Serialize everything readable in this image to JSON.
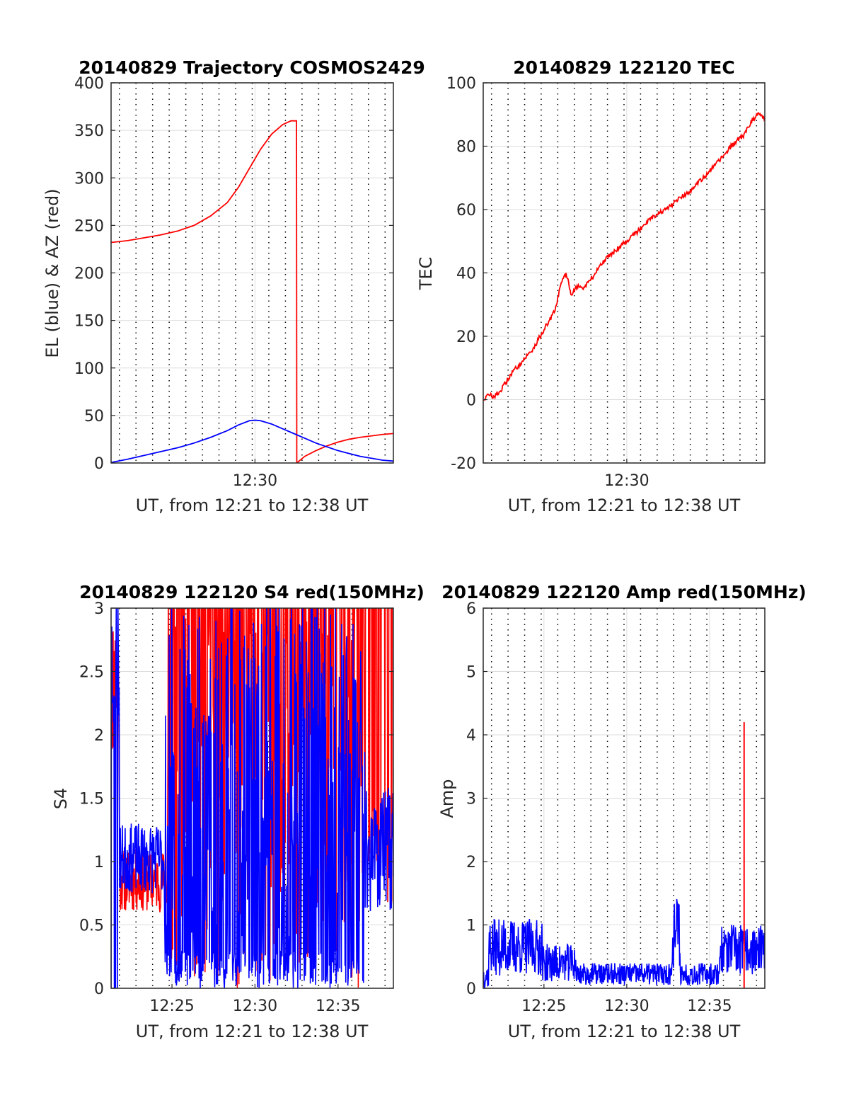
{
  "figure": {
    "background": "#ffffff",
    "colors": {
      "red": "#ff0000",
      "blue": "#0000ff",
      "axis": "#262626",
      "grid": "#dddddd",
      "dotted": "#000000"
    }
  },
  "chart_data": [
    {
      "type": "line",
      "title": "20140829 Trajectory COSMOS2429",
      "xlabel": "UT, from 12:21 to 12:38 UT",
      "ylabel": "EL (blue) & AZ (red)",
      "xlim": [
        "12:21:20",
        "12:38:20"
      ],
      "ylim": [
        0,
        400
      ],
      "yticks": [
        0,
        50,
        100,
        150,
        200,
        250,
        300,
        350,
        400
      ],
      "xticks": [
        "12:30"
      ],
      "grid": true,
      "dotted_vlines": [
        "12:21:50",
        "12:22:50",
        "12:23:50",
        "12:24:50",
        "12:25:50",
        "12:26:50",
        "12:27:50",
        "12:28:50",
        "12:29:50",
        "12:30:50",
        "12:31:50",
        "12:32:50",
        "12:33:50",
        "12:34:50",
        "12:35:50",
        "12:36:50",
        "12:37:50"
      ],
      "series": [
        {
          "color": "red",
          "x": [
            "12:21:20",
            "12:22:20",
            "12:23:20",
            "12:24:20",
            "12:25:20",
            "12:26:20",
            "12:27:20",
            "12:28:20",
            "12:29:00",
            "12:29:40",
            "12:30:20",
            "12:31:00",
            "12:31:40",
            "12:32:10",
            "12:32:30",
            "12:32:31",
            "12:33:00",
            "12:33:40",
            "12:34:20",
            "12:35:00",
            "12:35:40",
            "12:36:20",
            "12:37:00",
            "12:37:40",
            "12:38:20"
          ],
          "values": [
            232,
            234,
            237,
            240,
            244,
            250,
            260,
            274,
            290,
            310,
            330,
            346,
            356,
            360,
            360,
            0,
            7,
            13,
            18,
            22,
            25,
            27,
            28.5,
            30,
            31
          ]
        },
        {
          "color": "blue",
          "x": [
            "12:21:20",
            "12:22:20",
            "12:23:20",
            "12:24:20",
            "12:25:20",
            "12:26:20",
            "12:27:20",
            "12:28:20",
            "12:29:00",
            "12:29:40",
            "12:30:00",
            "12:30:20",
            "12:31:00",
            "12:31:40",
            "12:32:20",
            "12:33:00",
            "12:33:40",
            "12:34:20",
            "12:35:00",
            "12:35:40",
            "12:36:20",
            "12:37:00",
            "12:37:40",
            "12:38:20"
          ],
          "values": [
            0.5,
            4,
            8,
            12,
            16,
            21,
            27,
            34,
            40,
            44.5,
            45,
            44.5,
            41,
            36,
            31,
            26,
            21,
            17,
            13,
            10,
            7,
            5,
            3,
            2
          ]
        }
      ]
    },
    {
      "type": "line",
      "title": "20140829 122120 TEC",
      "xlabel": "UT, from 12:21 to 12:38 UT",
      "ylabel": "TEC",
      "xlim": [
        "12:21:20",
        "12:38:20"
      ],
      "ylim": [
        -20,
        100
      ],
      "yticks": [
        -20,
        0,
        20,
        40,
        60,
        80,
        100
      ],
      "xticks": [
        "12:30"
      ],
      "grid": true,
      "dotted_vlines": [
        "12:21:50",
        "12:22:50",
        "12:23:50",
        "12:24:50",
        "12:25:50",
        "12:26:50",
        "12:27:50",
        "12:28:50",
        "12:29:50",
        "12:30:50",
        "12:31:50",
        "12:32:50",
        "12:33:50",
        "12:34:50",
        "12:35:50",
        "12:36:50",
        "12:37:50"
      ],
      "series": [
        {
          "color": "red",
          "x": [
            "12:21:20",
            "12:21:40",
            "12:22:00",
            "12:22:20",
            "12:22:40",
            "12:23:00",
            "12:23:20",
            "12:23:40",
            "12:24:00",
            "12:24:20",
            "12:24:40",
            "12:25:00",
            "12:25:20",
            "12:25:40",
            "12:26:00",
            "12:26:20",
            "12:26:40",
            "12:27:00",
            "12:27:20",
            "12:27:40",
            "12:28:00",
            "12:28:20",
            "12:28:40",
            "12:29:00",
            "12:29:20",
            "12:29:40",
            "12:30:00",
            "12:30:20",
            "12:30:40",
            "12:31:00",
            "12:31:20",
            "12:31:40",
            "12:32:00",
            "12:32:20",
            "12:32:40",
            "12:33:00",
            "12:33:20",
            "12:33:40",
            "12:34:00",
            "12:34:20",
            "12:34:40",
            "12:35:00",
            "12:35:20",
            "12:35:40",
            "12:36:00",
            "12:36:20",
            "12:36:40",
            "12:37:00",
            "12:37:20",
            "12:37:40",
            "12:38:00",
            "12:38:20"
          ],
          "values": [
            0,
            1.5,
            1,
            2.5,
            5,
            8,
            10,
            12,
            14,
            16,
            19,
            22,
            25,
            28,
            36,
            40,
            33,
            36,
            35,
            37,
            39,
            42,
            44,
            46,
            47,
            49,
            50,
            52,
            53,
            55,
            57,
            58,
            59,
            60,
            61,
            63,
            64,
            65,
            67,
            69,
            70,
            72,
            74,
            76,
            78,
            80,
            82,
            83,
            86,
            89,
            90,
            89
          ]
        }
      ]
    },
    {
      "type": "line",
      "title": "20140829 122120 S4 red(150MHz)",
      "xlabel": "UT, from 12:21 to 12:38 UT",
      "ylabel": "S4",
      "xlim": [
        "12:21:20",
        "12:38:20"
      ],
      "ylim": [
        0,
        3
      ],
      "yticks": [
        "0",
        "0.5",
        "1",
        "1.5",
        "2",
        "2.5",
        "3"
      ],
      "xticks": [
        "12:25",
        "12:30",
        "12:35"
      ],
      "grid": true,
      "dotted_vlines": [
        "12:21:50",
        "12:22:50",
        "12:23:50",
        "12:24:50",
        "12:25:50",
        "12:26:50",
        "12:27:50",
        "12:28:50",
        "12:29:50",
        "12:30:50",
        "12:31:50",
        "12:32:50",
        "12:33:50",
        "12:34:50",
        "12:35:50",
        "12:36:50",
        "12:37:50"
      ],
      "series": [
        {
          "color": "red",
          "seed": 11,
          "noisy": true
        },
        {
          "color": "blue",
          "seed": 23,
          "noisy": true
        }
      ]
    },
    {
      "type": "line",
      "title": "20140829 122120 Amp red(150MHz)",
      "xlabel": "UT, from 12:21 to 12:38 UT",
      "ylabel": "Amp",
      "xlim": [
        "12:21:20",
        "12:38:20"
      ],
      "ylim": [
        0,
        6
      ],
      "yticks": [
        0,
        1,
        2,
        3,
        4,
        5,
        6
      ],
      "xticks": [
        "12:25",
        "12:30",
        "12:35"
      ],
      "grid": true,
      "dotted_vlines": [
        "12:21:50",
        "12:22:50",
        "12:23:50",
        "12:24:50",
        "12:25:50",
        "12:26:50",
        "12:27:50",
        "12:28:50",
        "12:29:50",
        "12:30:50",
        "12:31:50",
        "12:32:50",
        "12:33:50",
        "12:34:50",
        "12:35:50",
        "12:36:50",
        "12:37:50"
      ],
      "series": [
        {
          "color": "blue",
          "seed": 37,
          "noisy": true
        },
        {
          "color": "red",
          "spike": {
            "x": "12:37:05",
            "value": 4.2
          }
        }
      ]
    }
  ]
}
